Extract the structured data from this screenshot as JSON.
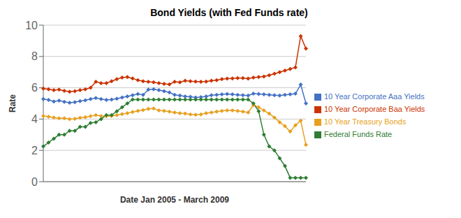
{
  "chart_data": {
    "type": "line",
    "title": "Bond Yields (with Fed Funds rate)",
    "xlabel": "Date Jan 2005 - March 2009",
    "ylabel": "Rate",
    "categories": [
      null,
      null,
      null,
      null,
      null,
      null,
      null,
      null,
      null,
      null,
      null,
      null,
      null,
      null,
      null,
      null,
      null,
      null,
      null,
      null,
      null,
      null,
      null,
      null,
      null,
      null,
      null,
      null,
      null,
      null,
      null,
      null,
      null,
      null,
      null,
      null,
      null,
      null,
      null,
      null,
      null,
      null,
      null,
      null,
      null,
      null,
      null,
      null,
      null,
      null,
      null
    ],
    "series": [
      {
        "name": "10 Year Corporate Aaa Yields",
        "color": "#4472C4",
        "values": [
          5.28,
          5.22,
          5.12,
          5.18,
          5.1,
          5.05,
          5.08,
          5.15,
          5.2,
          5.28,
          5.35,
          5.28,
          5.22,
          5.25,
          5.3,
          5.38,
          5.45,
          5.52,
          5.6,
          5.55,
          5.88,
          5.9,
          5.85,
          5.78,
          5.7,
          5.55,
          5.5,
          5.45,
          5.42,
          5.38,
          5.4,
          5.45,
          5.52,
          5.55,
          5.58,
          5.6,
          5.58,
          5.55,
          5.52,
          5.5,
          5.62,
          5.6,
          5.58,
          5.55,
          5.52,
          5.5,
          5.55,
          5.58,
          5.62,
          6.2,
          5.0
        ]
      },
      {
        "name": "10 Year Corporate Baa Yields",
        "color": "#CC3300",
        "values": [
          5.95,
          5.9,
          5.85,
          5.88,
          5.8,
          5.75,
          5.78,
          5.85,
          5.9,
          6.0,
          6.38,
          6.3,
          6.3,
          6.42,
          6.55,
          6.65,
          6.68,
          6.6,
          6.48,
          6.42,
          6.38,
          6.35,
          6.3,
          6.25,
          6.22,
          6.38,
          6.35,
          6.45,
          6.42,
          6.4,
          6.38,
          6.4,
          6.45,
          6.48,
          6.55,
          6.58,
          6.6,
          6.62,
          6.62,
          6.58,
          6.65,
          6.68,
          6.72,
          6.8,
          6.9,
          7.0,
          7.1,
          7.2,
          7.3,
          9.3,
          8.5
        ]
      },
      {
        "name": "10 Year Treasury Bonds",
        "color": "#E8A020",
        "values": [
          4.2,
          4.15,
          4.1,
          4.05,
          4.05,
          4.0,
          4.02,
          4.08,
          4.12,
          4.18,
          4.25,
          4.2,
          4.18,
          4.2,
          4.25,
          4.32,
          4.38,
          4.45,
          4.52,
          4.58,
          4.65,
          4.68,
          4.55,
          4.52,
          4.48,
          4.42,
          4.38,
          4.35,
          4.3,
          4.28,
          4.3,
          4.38,
          4.42,
          4.48,
          4.52,
          4.55,
          4.55,
          4.52,
          4.48,
          4.42,
          4.9,
          4.75,
          4.55,
          4.35,
          4.1,
          3.8,
          3.55,
          3.2,
          3.6,
          3.9,
          2.35
        ]
      },
      {
        "name": "Federal Funds Rate",
        "color": "#2E7D32",
        "values": [
          2.25,
          2.5,
          2.75,
          3.0,
          3.0,
          3.25,
          3.25,
          3.5,
          3.5,
          3.75,
          3.8,
          4.0,
          4.25,
          4.25,
          4.5,
          4.75,
          5.0,
          5.25,
          5.25,
          5.25,
          5.25,
          5.25,
          5.25,
          5.25,
          5.25,
          5.25,
          5.25,
          5.25,
          5.25,
          5.25,
          5.25,
          5.25,
          5.25,
          5.25,
          5.25,
          5.25,
          5.25,
          5.25,
          5.25,
          5.25,
          5.0,
          4.5,
          3.0,
          2.25,
          2.0,
          1.5,
          1.0,
          0.25,
          0.25,
          0.25,
          0.25
        ]
      }
    ],
    "ylim": [
      0,
      10
    ],
    "yticks": [
      0,
      2,
      4,
      6,
      8,
      10
    ],
    "grid": true,
    "legend": "right",
    "marker": "diamond",
    "tick_labels": "y"
  }
}
